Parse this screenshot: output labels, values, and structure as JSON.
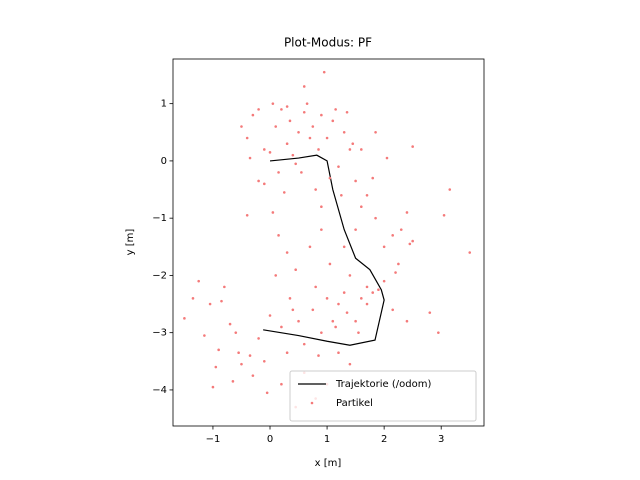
{
  "chart_data": {
    "type": "line",
    "title": "Plot-Modus: PF",
    "x_label": "x [m]",
    "y_label": "y [m]",
    "xlim": [
      -1.7,
      3.75
    ],
    "ylim": [
      -4.63,
      1.78
    ],
    "xticks": [
      {
        "value": -1,
        "label": "−1"
      },
      0,
      1,
      2,
      3
    ],
    "yticks": [
      {
        "value": -4,
        "label": "−4"
      },
      {
        "value": -3,
        "label": "−3"
      },
      {
        "value": -2,
        "label": "−2"
      },
      {
        "value": -1,
        "label": "−1"
      },
      0,
      1
    ],
    "legend": "lower right",
    "series": [
      {
        "name": "Trajektorie (/odom)",
        "type": "line",
        "color": "#000000",
        "x": [
          0,
          0.5,
          0.82,
          1.0,
          1.1,
          1.3,
          1.5,
          1.75,
          1.95,
          2.0,
          1.84,
          1.4,
          1.0,
          0.5,
          -0.12
        ],
        "values": [
          0,
          0.05,
          0.1,
          0.0,
          -0.5,
          -1.2,
          -1.7,
          -1.9,
          -2.25,
          -2.43,
          -3.13,
          -3.22,
          -3.15,
          -3.05,
          -2.95
        ]
      },
      {
        "name": "Partikel",
        "type": "scatter",
        "color": "#f47a7a",
        "x": [
          -0.5,
          -0.4,
          -0.3,
          -0.2,
          -0.1,
          0,
          0.05,
          0.1,
          0.2,
          0.3,
          0.35,
          0.4,
          0.5,
          0.55,
          0.6,
          0.65,
          0.7,
          0.75,
          0.8,
          0.85,
          0.9,
          1.0,
          1.05,
          1.1,
          1.15,
          1.2,
          1.3,
          1.35,
          1.45,
          1.5,
          1.6,
          1.7,
          1.85,
          2.05,
          2.5,
          -0.35,
          -0.1,
          0.15,
          0.45,
          0.25,
          0.9,
          1.25,
          0.05,
          -0.4,
          -0.2,
          0.6,
          0.95,
          1.4,
          1.8,
          0.3,
          0.15,
          0.3,
          0.45,
          0.7,
          0.9,
          0.8,
          1.05,
          1.3,
          1.5,
          1.6,
          1.85,
          2.0,
          2.15,
          2.3,
          2.4,
          2.45,
          2.25,
          2.0,
          2.2,
          1.7,
          1.4,
          1.2,
          3.15,
          3.05,
          3.5,
          2.5,
          0.1,
          0.4,
          1.1,
          -0.2,
          0,
          0.2,
          0.35,
          0.5,
          0.6,
          0.75,
          0.9,
          1.0,
          1.15,
          1.3,
          1.35,
          1.5,
          1.6,
          1.7,
          1.8,
          1.9,
          2.15,
          2.4,
          2.8,
          2.95,
          1.55,
          1.2,
          0.85,
          0.3,
          -0.1,
          0.6,
          0.2,
          0.8,
          0.45,
          -0.05,
          1.0,
          1.4,
          -1.5,
          -1.35,
          -1.25,
          -1.15,
          -1.05,
          -0.85,
          -0.8,
          -0.7,
          -0.6,
          -0.55,
          -0.5,
          -0.9,
          -0.95,
          -1.0,
          -0.35,
          -0.3,
          -0.65
        ],
        "values": [
          0.6,
          0.4,
          0.8,
          0.9,
          0.2,
          0.15,
          1.0,
          0.6,
          0.9,
          0.3,
          0.7,
          0.1,
          0.5,
          -0.2,
          0.85,
          1.0,
          0.4,
          0.6,
          -0.5,
          0.2,
          0.8,
          0.4,
          -0.3,
          0.7,
          0.9,
          -0.1,
          0.5,
          0.85,
          0.3,
          -0.35,
          0.2,
          -0.6,
          0.5,
          0.05,
          0.25,
          0.05,
          -0.4,
          -0.2,
          -0.05,
          -0.55,
          -0.8,
          -0.6,
          -0.9,
          -0.95,
          -0.35,
          1.3,
          1.55,
          0.2,
          -0.3,
          0.95,
          -1.3,
          -1.6,
          -1.9,
          -1.5,
          -1.2,
          -2.2,
          -1.8,
          -1.5,
          -1.2,
          -0.8,
          -1.0,
          -1.5,
          -1.3,
          -1.2,
          -0.9,
          -1.45,
          -1.8,
          -2.1,
          -1.95,
          -2.2,
          -2.0,
          -2.5,
          -0.5,
          -0.95,
          -1.6,
          -1.4,
          -2.0,
          -2.6,
          -2.8,
          -3.1,
          -2.7,
          -2.9,
          -2.4,
          -2.8,
          -3.2,
          -2.6,
          -3.0,
          -2.4,
          -2.9,
          -2.3,
          -2.65,
          -2.8,
          -2.4,
          -2.5,
          -2.3,
          -2.25,
          -2.6,
          -2.8,
          -2.65,
          -3.0,
          -3.0,
          -3.35,
          -3.4,
          -3.35,
          -3.5,
          -3.7,
          -3.9,
          -4.15,
          -4.3,
          -4.05,
          -3.9,
          -3.55,
          -2.75,
          -2.4,
          -2.1,
          -3.05,
          -2.5,
          -2.45,
          -2.2,
          -2.85,
          -3.0,
          -3.35,
          -3.55,
          -3.3,
          -3.6,
          -3.95,
          -3.4,
          -3.75,
          -3.85
        ]
      }
    ]
  }
}
